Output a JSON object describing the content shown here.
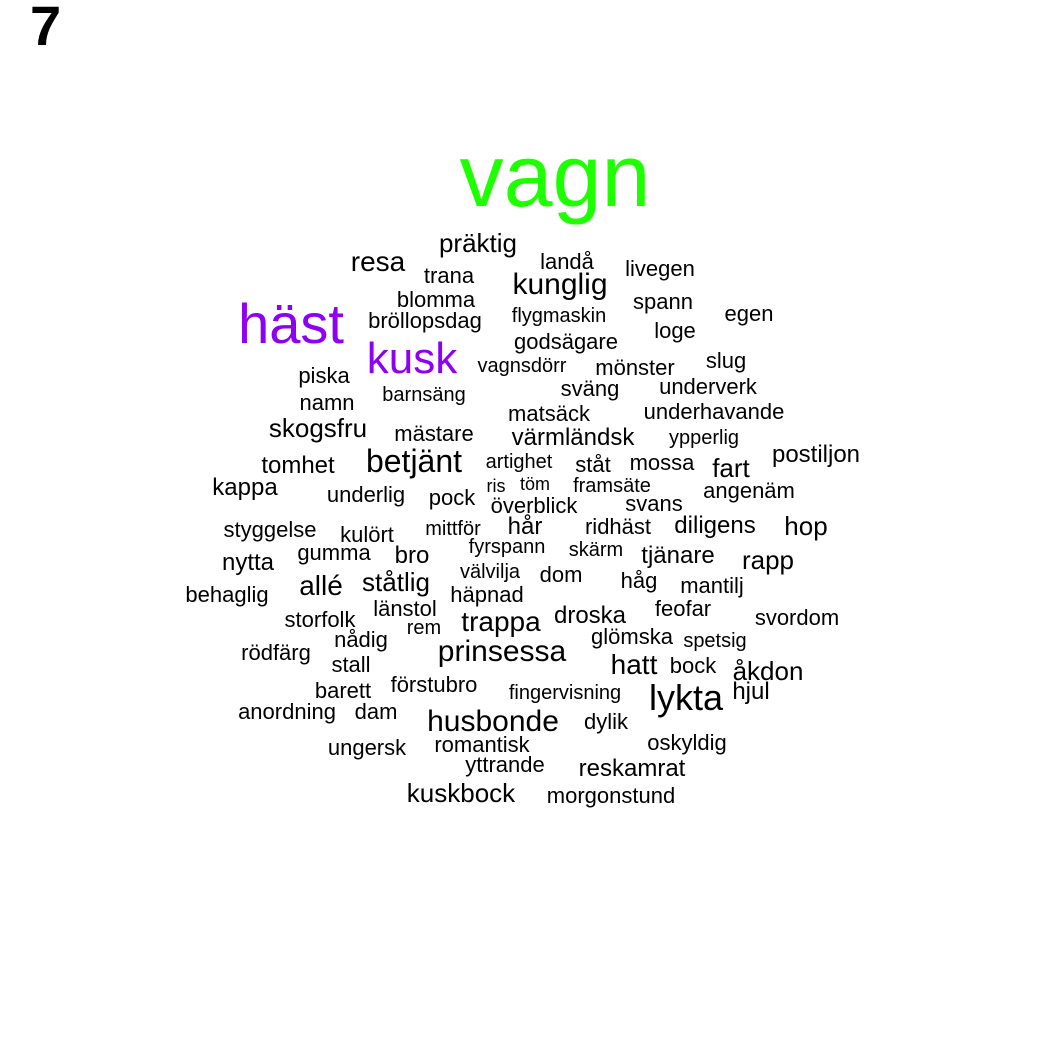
{
  "panel_label": "7",
  "colors": {
    "primary": "#1eff00",
    "secondary": "#8e00f5",
    "default": "#000000"
  },
  "words": [
    {
      "text": "vagn",
      "emphasis": "primary"
    },
    {
      "text": "häst",
      "emphasis": "secondary"
    },
    {
      "text": "kusk",
      "emphasis": "secondary"
    },
    {
      "text": "präktig"
    },
    {
      "text": "resa"
    },
    {
      "text": "landå"
    },
    {
      "text": "trana"
    },
    {
      "text": "livegen"
    },
    {
      "text": "kunglig"
    },
    {
      "text": "blomma"
    },
    {
      "text": "spann"
    },
    {
      "text": "bröllopsdag"
    },
    {
      "text": "flygmaskin"
    },
    {
      "text": "egen"
    },
    {
      "text": "loge"
    },
    {
      "text": "godsägare"
    },
    {
      "text": "vagnsdörr"
    },
    {
      "text": "mönster"
    },
    {
      "text": "slug"
    },
    {
      "text": "piska"
    },
    {
      "text": "sväng"
    },
    {
      "text": "underverk"
    },
    {
      "text": "barnsäng"
    },
    {
      "text": "namn"
    },
    {
      "text": "matsäck"
    },
    {
      "text": "underhavande"
    },
    {
      "text": "skogsfru"
    },
    {
      "text": "mästare"
    },
    {
      "text": "värmländsk"
    },
    {
      "text": "ypperlig"
    },
    {
      "text": "tomhet"
    },
    {
      "text": "betjänt"
    },
    {
      "text": "artighet"
    },
    {
      "text": "ståt"
    },
    {
      "text": "mossa"
    },
    {
      "text": "fart"
    },
    {
      "text": "postiljon"
    },
    {
      "text": "kappa"
    },
    {
      "text": "ris"
    },
    {
      "text": "töm"
    },
    {
      "text": "framsäte"
    },
    {
      "text": "underlig"
    },
    {
      "text": "pock"
    },
    {
      "text": "angenäm"
    },
    {
      "text": "överblick"
    },
    {
      "text": "svans"
    },
    {
      "text": "styggelse"
    },
    {
      "text": "kulört"
    },
    {
      "text": "mittför"
    },
    {
      "text": "hår"
    },
    {
      "text": "ridhäst"
    },
    {
      "text": "diligens"
    },
    {
      "text": "hop"
    },
    {
      "text": "nytta"
    },
    {
      "text": "gumma"
    },
    {
      "text": "bro"
    },
    {
      "text": "fyrspann"
    },
    {
      "text": "skärm"
    },
    {
      "text": "tjänare"
    },
    {
      "text": "rapp"
    },
    {
      "text": "välvilja"
    },
    {
      "text": "dom"
    },
    {
      "text": "allé"
    },
    {
      "text": "ståtlig"
    },
    {
      "text": "håg"
    },
    {
      "text": "mantilj"
    },
    {
      "text": "behaglig"
    },
    {
      "text": "häpnad"
    },
    {
      "text": "feofar"
    },
    {
      "text": "länstol"
    },
    {
      "text": "storfolk"
    },
    {
      "text": "trappa"
    },
    {
      "text": "droska"
    },
    {
      "text": "svordom"
    },
    {
      "text": "rem"
    },
    {
      "text": "glömska"
    },
    {
      "text": "nådig"
    },
    {
      "text": "spetsig"
    },
    {
      "text": "rödfärg"
    },
    {
      "text": "prinsessa"
    },
    {
      "text": "hatt"
    },
    {
      "text": "bock"
    },
    {
      "text": "stall"
    },
    {
      "text": "åkdon"
    },
    {
      "text": "förstubro"
    },
    {
      "text": "barett"
    },
    {
      "text": "fingervisning"
    },
    {
      "text": "lykta"
    },
    {
      "text": "hjul"
    },
    {
      "text": "anordning"
    },
    {
      "text": "dam"
    },
    {
      "text": "husbonde"
    },
    {
      "text": "dylik"
    },
    {
      "text": "ungersk"
    },
    {
      "text": "romantisk"
    },
    {
      "text": "oskyldig"
    },
    {
      "text": "yttrande"
    },
    {
      "text": "reskamrat"
    },
    {
      "text": "kuskbock"
    },
    {
      "text": "morgonstund"
    }
  ]
}
